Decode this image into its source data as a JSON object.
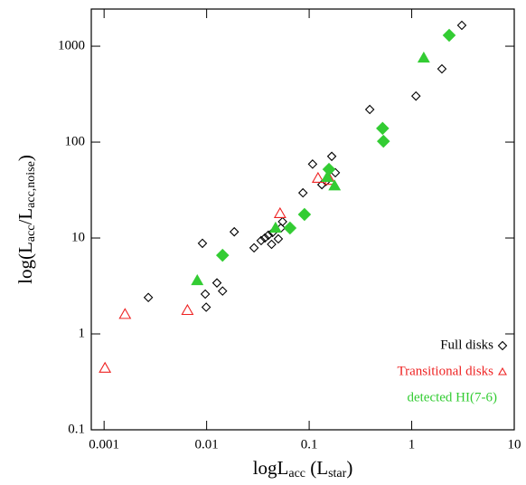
{
  "chart_data": {
    "type": "scatter",
    "x_scale": "log",
    "y_scale": "log",
    "xlim": [
      0.00075,
      10
    ],
    "ylim": [
      0.1,
      2440
    ],
    "xticks": [
      0.001,
      0.01,
      0.1,
      1,
      10
    ],
    "yticks": [
      0.1,
      1,
      10,
      100,
      1000
    ],
    "xlabel_parts": [
      {
        "text": "logL"
      },
      {
        "text": "acc",
        "sub": true
      },
      {
        "text": " (L"
      },
      {
        "text": "star",
        "sub": true
      },
      {
        "text": ")"
      }
    ],
    "ylabel_parts": [
      {
        "text": "log(L"
      },
      {
        "text": "acc",
        "sub": true
      },
      {
        "text": "/L"
      },
      {
        "text": "acc,noise",
        "sub": true
      },
      {
        "text": ")"
      }
    ],
    "legend_position": "lower right",
    "series": [
      {
        "name": "Full disks",
        "color": "#000000",
        "filled": false,
        "marker": "diamond",
        "legend_marker": true,
        "x": [
          0.0027,
          0.0091,
          0.0097,
          0.0099,
          0.0126,
          0.0143,
          0.0186,
          0.029,
          0.034,
          0.037,
          0.04,
          0.043,
          0.044,
          0.05,
          0.053,
          0.055,
          0.087,
          0.108,
          0.133,
          0.146,
          0.166,
          0.18,
          0.39,
          1.1,
          1.97,
          3.08
        ],
        "values": [
          2.4,
          8.8,
          2.6,
          1.9,
          3.4,
          2.8,
          11.6,
          7.9,
          9.4,
          10,
          10.7,
          8.6,
          11.4,
          9.8,
          12.7,
          14.8,
          29.6,
          59,
          36,
          39,
          71,
          48,
          219,
          302,
          580,
          1650
        ]
      },
      {
        "name": "Transitional disks",
        "color": "#ee2222",
        "filled": false,
        "marker": "triangle",
        "legend_marker": true,
        "x": [
          0.00102,
          0.0016,
          0.0065,
          0.052,
          0.122,
          0.16
        ],
        "values": [
          0.44,
          1.6,
          1.76,
          18,
          42,
          40
        ]
      },
      {
        "name": "detected HI(7-6)",
        "color": "#33cc33",
        "filled": true,
        "legend_marker": false,
        "markers": [
          "triangle",
          "diamond",
          "triangle",
          "diamond",
          "diamond",
          "triangle",
          "diamond",
          "triangle",
          "diamond",
          "diamond",
          "triangle",
          "diamond"
        ],
        "x": [
          0.0081,
          0.0143,
          0.047,
          0.065,
          0.09,
          0.15,
          0.156,
          0.177,
          0.52,
          0.53,
          1.31,
          2.32
        ],
        "values": [
          3.6,
          6.6,
          12.7,
          12.7,
          17.6,
          43,
          52,
          35,
          139,
          102,
          754,
          1300
        ]
      }
    ]
  }
}
